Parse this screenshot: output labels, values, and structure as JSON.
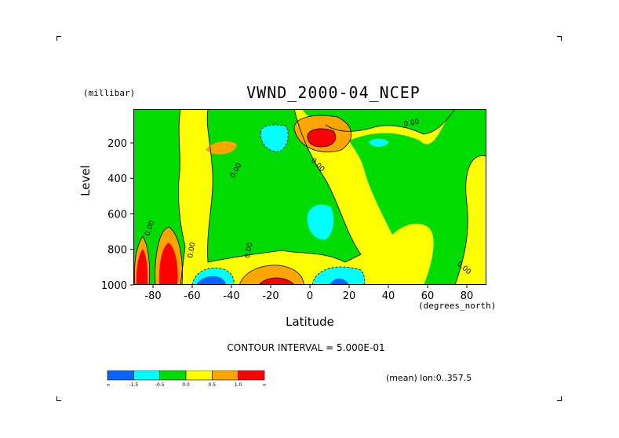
{
  "chart_data": {
    "type": "heatmap",
    "title": "VWND_2000-04_NCEP",
    "xlabel": "Latitude",
    "x_units": "(degrees_north)",
    "ylabel": "Level",
    "y_units": "(millibar)",
    "xlim": [
      -90,
      90
    ],
    "ylim": [
      1000,
      10
    ],
    "x_ticks": [
      "-80",
      "-60",
      "-40",
      "-20",
      "0",
      "20",
      "40",
      "60",
      "80"
    ],
    "y_ticks": [
      "200",
      "400",
      "600",
      "800",
      "1000"
    ],
    "contour_labels": [
      "0.00",
      "0.00",
      "0.00",
      "0.00",
      "0.00",
      "0.00",
      "0.00"
    ],
    "contour_interval_text": "CONTOUR INTERVAL = 5.000E-01",
    "mean_text": "(mean) lon:0..357.5",
    "colorbar": {
      "colors": [
        "#0a64ff",
        "#00ffff",
        "#00dc00",
        "#ffff00",
        "#ffa500",
        "#ff0000"
      ],
      "labels": [
        "-∞",
        "-1.5",
        "-0.5",
        "0.0",
        "0.5",
        "1.0",
        "∞"
      ]
    },
    "features": [
      {
        "name": "polar positive maximum",
        "lat": -88,
        "level": 900,
        "value": 1.5
      },
      {
        "name": "polar positive maximum",
        "lat": -73,
        "level": 880,
        "value": 1.5
      },
      {
        "name": "negative minimum",
        "lat": -57,
        "level": 980,
        "value": -1.5
      },
      {
        "name": "tropospheric positive",
        "lat": -20,
        "level": 960,
        "value": 1.2
      },
      {
        "name": "negative minimum",
        "lat": 12,
        "level": 960,
        "value": -1.0
      },
      {
        "name": "upper positive maximum",
        "lat": 10,
        "level": 180,
        "value": 1.5
      },
      {
        "name": "upper negative",
        "lat": -20,
        "level": 170,
        "value": -0.7
      },
      {
        "name": "mid negative",
        "lat": 8,
        "level": 620,
        "value": -0.6
      }
    ]
  }
}
